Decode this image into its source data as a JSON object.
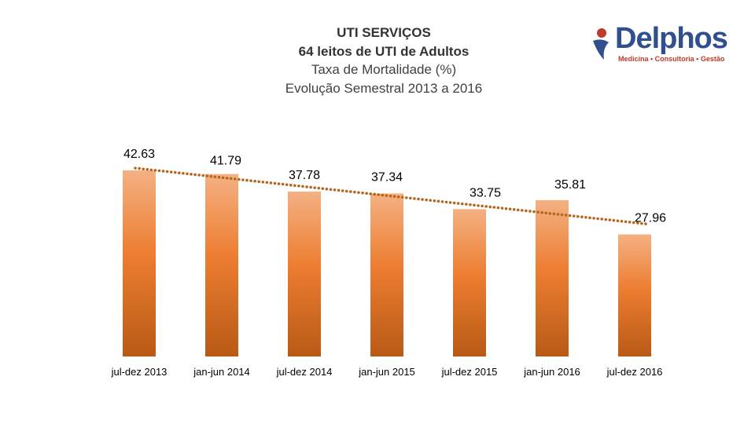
{
  "header": {
    "title_line1": "UTI SERVIÇOS",
    "title_line2": "64 leitos de UTI de Adultos",
    "title_line3": "Taxa de Mortalidade (%)",
    "title_line4": "Evolução Semestral 2013 a 2016"
  },
  "logo": {
    "name": "Delphos",
    "tagline": "Medicina • Consultoria • Gestão",
    "colors": {
      "primary": "#2f4f8f",
      "accent": "#c0392b"
    }
  },
  "chart_data": {
    "type": "bar",
    "title": "UTI SERVIÇOS — 64 leitos de UTI de Adultos — Taxa de Mortalidade (%) — Evolução Semestral 2013 a 2016",
    "categories": [
      "jul-dez 2013",
      "jan-jun 2014",
      "jul-dez 2014",
      "jan-jun 2015",
      "jul-dez 2015",
      "jan-jun 2016",
      "jul-dez 2016"
    ],
    "values": [
      42.63,
      41.79,
      37.78,
      37.34,
      33.75,
      35.81,
      27.96
    ],
    "value_labels": [
      "42.63",
      "41.79",
      "37.78",
      "37.34",
      "33.75",
      "35.81",
      "27.96"
    ],
    "xlabel": "",
    "ylabel": "",
    "ylim": [
      0,
      42.63
    ],
    "grid": false,
    "trendline": {
      "type": "linear",
      "style": "dotted",
      "color": "#b5651d"
    },
    "colors": {
      "bar_top": "#f4b183",
      "bar_mid": "#ed7d31",
      "bar_bottom": "#b85a16"
    }
  }
}
